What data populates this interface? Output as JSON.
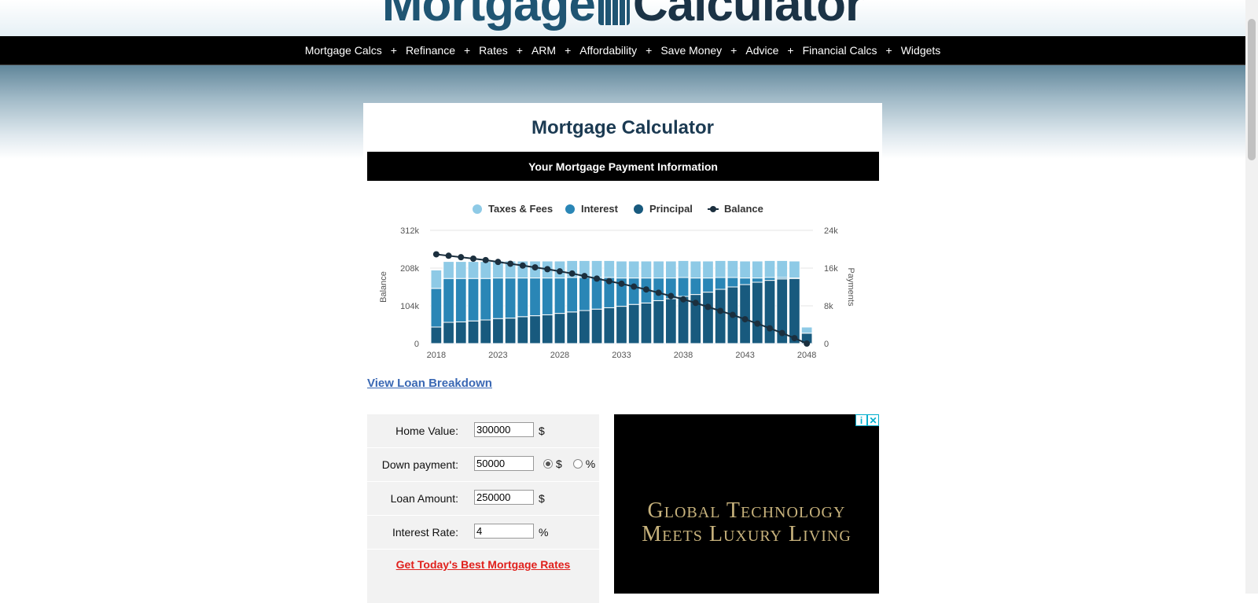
{
  "header": {
    "logo_part1": "Mortgage",
    "logo_part2": "Calculator"
  },
  "nav": {
    "items": [
      "Mortgage Calcs",
      "Refinance",
      "Rates",
      "ARM",
      "Affordability",
      "Save Money",
      "Advice",
      "Financial Calcs",
      "Widgets"
    ],
    "separator": "+"
  },
  "page": {
    "title": "Mortgage Calculator",
    "section_title": "Your Mortgage Payment Information",
    "breakdown_link": "View Loan Breakdown"
  },
  "chart_data": {
    "type": "bar",
    "stacked": true,
    "x_ticks": [
      "2018",
      "2023",
      "2028",
      "2033",
      "2038",
      "2043",
      "2048"
    ],
    "y_left_ticks": [
      "0",
      "104k",
      "208k",
      "312k"
    ],
    "y_right_ticks": [
      "0",
      "8k",
      "16k",
      "24k"
    ],
    "ylabel_left": "Balance",
    "ylabel_right": "Payments",
    "ylim_left": [
      0,
      312000
    ],
    "ylim_right": [
      0,
      24000
    ],
    "legend_position": "top-center",
    "colors": {
      "taxes": "#8ecae6",
      "interest": "#2a86b6",
      "principal": "#185a7e",
      "balance": "#1b2f3e"
    },
    "years": [
      2018,
      2019,
      2020,
      2021,
      2022,
      2023,
      2024,
      2025,
      2026,
      2027,
      2028,
      2029,
      2030,
      2031,
      2032,
      2033,
      2034,
      2035,
      2036,
      2037,
      2038,
      2039,
      2040,
      2041,
      2042,
      2043,
      2044,
      2045,
      2046,
      2047,
      2048
    ],
    "series": [
      {
        "name": "Taxes & Fees",
        "key": "taxes",
        "values": [
          3900,
          3600,
          3600,
          3600,
          3600,
          3600,
          3600,
          3600,
          3600,
          3600,
          3600,
          3600,
          3600,
          3600,
          3600,
          3600,
          3600,
          3600,
          3600,
          3600,
          3600,
          3600,
          3600,
          3600,
          3600,
          3600,
          3600,
          3600,
          3600,
          3600,
          1300
        ]
      },
      {
        "name": "Interest",
        "key": "interest",
        "values": [
          8200,
          9300,
          9200,
          9000,
          8800,
          8600,
          8500,
          8200,
          8000,
          7800,
          7500,
          7300,
          7000,
          6700,
          6400,
          6000,
          5600,
          5300,
          4800,
          4400,
          4000,
          3500,
          3000,
          2500,
          2000,
          1400,
          900,
          600,
          300,
          100,
          0
        ]
      },
      {
        "name": "Principal",
        "key": "principal",
        "values": [
          3500,
          4500,
          4600,
          4800,
          5000,
          5300,
          5400,
          5700,
          5900,
          6100,
          6400,
          6700,
          7000,
          7300,
          7600,
          7900,
          8300,
          8600,
          9100,
          9500,
          10000,
          10400,
          10900,
          11500,
          12000,
          12500,
          13000,
          13400,
          13700,
          13800,
          2200
        ]
      },
      {
        "name": "Balance",
        "key": "balance",
        "type": "line",
        "values": [
          246000,
          242000,
          238000,
          234000,
          230000,
          225000,
          220000,
          215000,
          210000,
          205000,
          199000,
          193000,
          186000,
          179000,
          172000,
          165000,
          157000,
          149000,
          140000,
          131000,
          122000,
          112000,
          101000,
          90000,
          79000,
          67000,
          55000,
          42000,
          29000,
          15000,
          0
        ]
      }
    ]
  },
  "form": {
    "home_value": {
      "label": "Home Value:",
      "value": "300000",
      "unit": "$"
    },
    "down_payment": {
      "label": "Down payment:",
      "value": "50000",
      "opt_dollar": "$",
      "opt_percent": "%"
    },
    "loan_amount": {
      "label": "Loan Amount:",
      "value": "250000",
      "unit": "$"
    },
    "interest_rate": {
      "label": "Interest Rate:",
      "value": "4",
      "unit": "%"
    },
    "rates_link": "Get Today's Best Mortgage Rates"
  },
  "ad": {
    "line1": "Global Technology",
    "line2": "Meets Luxury Living",
    "info_glyph": "i",
    "close_glyph": "✕"
  }
}
